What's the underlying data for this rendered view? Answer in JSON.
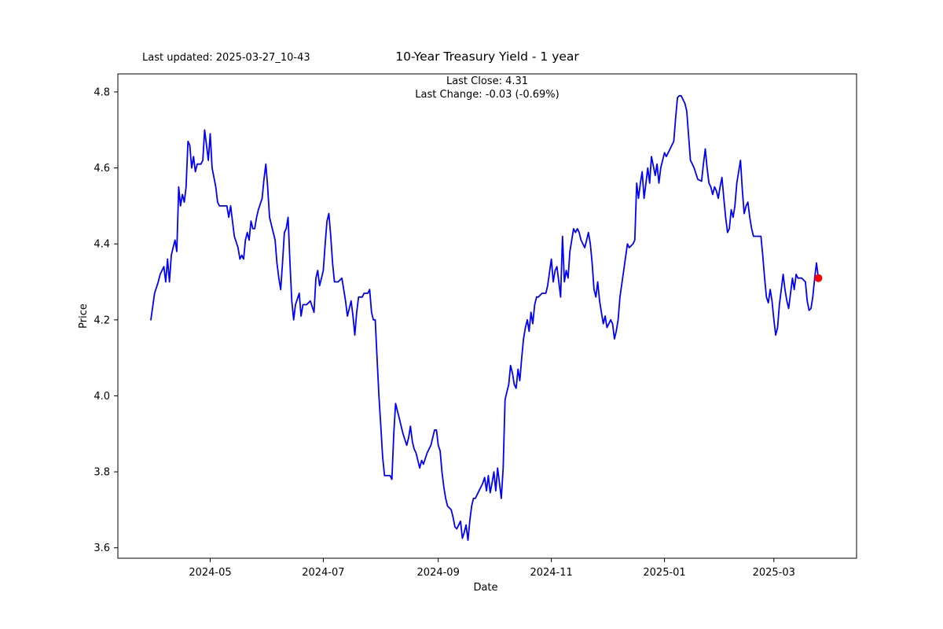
{
  "figure": {
    "last_updated": "Last updated: 2025-03-27_10-43",
    "title": "10-Year Treasury Yield - 1 year",
    "subtitle_line1": "Last Close: 4.31",
    "subtitle_line2": "Last Change: -0.03 (-0.69%)"
  },
  "chart_data": {
    "type": "line",
    "title": "10-Year Treasury Yield - 1 year",
    "xlabel": "Date",
    "ylabel": "Price",
    "last_close": 4.31,
    "last_change": -0.03,
    "last_change_pct": "-0.69%",
    "line_color": "#0000ff",
    "marker_color": "#ff0000",
    "grid": false,
    "legend": "none",
    "ylim": [
      3.5725,
      4.8475
    ],
    "y_ticks": [
      "3.6",
      "3.8",
      "4.0",
      "4.2",
      "4.4",
      "4.6",
      "4.8"
    ],
    "x_start_date": "2024-03-30",
    "x_ticks": [
      {
        "label": "2024-05",
        "day": 32
      },
      {
        "label": "2024-07",
        "day": 93
      },
      {
        "label": "2024-09",
        "day": 155
      },
      {
        "label": "2024-11",
        "day": 216
      },
      {
        "label": "2025-01",
        "day": 277
      },
      {
        "label": "2025-03",
        "day": 336
      }
    ],
    "series": [
      {
        "name": "10-Year Treasury Yield",
        "points_format": "[days_since_2024-03-30, yield_percent]",
        "points": [
          [
            0,
            4.2
          ],
          [
            2,
            4.27
          ],
          [
            4,
            4.3
          ],
          [
            5,
            4.32
          ],
          [
            7,
            4.34
          ],
          [
            8,
            4.3
          ],
          [
            9,
            4.36
          ],
          [
            10,
            4.3
          ],
          [
            11,
            4.37
          ],
          [
            12,
            4.39
          ],
          [
            13,
            4.41
          ],
          [
            14,
            4.38
          ],
          [
            15,
            4.55
          ],
          [
            16,
            4.5
          ],
          [
            17,
            4.53
          ],
          [
            18,
            4.51
          ],
          [
            19,
            4.55
          ],
          [
            20,
            4.67
          ],
          [
            21,
            4.66
          ],
          [
            22,
            4.6
          ],
          [
            23,
            4.63
          ],
          [
            24,
            4.59
          ],
          [
            25,
            4.61
          ],
          [
            27,
            4.61
          ],
          [
            28,
            4.62
          ],
          [
            29,
            4.7
          ],
          [
            30,
            4.66
          ],
          [
            31,
            4.62
          ],
          [
            32,
            4.69
          ],
          [
            33,
            4.6
          ],
          [
            35,
            4.55
          ],
          [
            36,
            4.51
          ],
          [
            37,
            4.5
          ],
          [
            39,
            4.5
          ],
          [
            41,
            4.5
          ],
          [
            42,
            4.47
          ],
          [
            43,
            4.5
          ],
          [
            44,
            4.46
          ],
          [
            45,
            4.42
          ],
          [
            47,
            4.39
          ],
          [
            48,
            4.36
          ],
          [
            49,
            4.37
          ],
          [
            50,
            4.36
          ],
          [
            51,
            4.41
          ],
          [
            52,
            4.43
          ],
          [
            53,
            4.41
          ],
          [
            54,
            4.46
          ],
          [
            55,
            4.44
          ],
          [
            56,
            4.44
          ],
          [
            57,
            4.47
          ],
          [
            58,
            4.49
          ],
          [
            60,
            4.52
          ],
          [
            61,
            4.57
          ],
          [
            62,
            4.61
          ],
          [
            63,
            4.55
          ],
          [
            64,
            4.47
          ],
          [
            67,
            4.41
          ],
          [
            68,
            4.35
          ],
          [
            69,
            4.31
          ],
          [
            70,
            4.28
          ],
          [
            71,
            4.35
          ],
          [
            72,
            4.43
          ],
          [
            73,
            4.44
          ],
          [
            74,
            4.47
          ],
          [
            75,
            4.35
          ],
          [
            76,
            4.25
          ],
          [
            77,
            4.2
          ],
          [
            78,
            4.24
          ],
          [
            80,
            4.27
          ],
          [
            81,
            4.21
          ],
          [
            82,
            4.24
          ],
          [
            84,
            4.24
          ],
          [
            86,
            4.25
          ],
          [
            88,
            4.22
          ],
          [
            89,
            4.31
          ],
          [
            90,
            4.33
          ],
          [
            91,
            4.29
          ],
          [
            92,
            4.31
          ],
          [
            93,
            4.33
          ],
          [
            94,
            4.4
          ],
          [
            95,
            4.46
          ],
          [
            96,
            4.48
          ],
          [
            97,
            4.42
          ],
          [
            98,
            4.35
          ],
          [
            99,
            4.3
          ],
          [
            101,
            4.3
          ],
          [
            103,
            4.31
          ],
          [
            104,
            4.28
          ],
          [
            105,
            4.25
          ],
          [
            106,
            4.21
          ],
          [
            107,
            4.23
          ],
          [
            108,
            4.25
          ],
          [
            109,
            4.21
          ],
          [
            110,
            4.16
          ],
          [
            111,
            4.22
          ],
          [
            112,
            4.26
          ],
          [
            114,
            4.26
          ],
          [
            115,
            4.27
          ],
          [
            117,
            4.27
          ],
          [
            118,
            4.28
          ],
          [
            119,
            4.22
          ],
          [
            120,
            4.2
          ],
          [
            121,
            4.2
          ],
          [
            122,
            4.1
          ],
          [
            123,
            4.0
          ],
          [
            124,
            3.92
          ],
          [
            125,
            3.84
          ],
          [
            126,
            3.79
          ],
          [
            127,
            3.79
          ],
          [
            129,
            3.79
          ],
          [
            130,
            3.78
          ],
          [
            131,
            3.9
          ],
          [
            132,
            3.98
          ],
          [
            133,
            3.96
          ],
          [
            134,
            3.94
          ],
          [
            135,
            3.92
          ],
          [
            136,
            3.9
          ],
          [
            137,
            3.885
          ],
          [
            138,
            3.87
          ],
          [
            139,
            3.89
          ],
          [
            140,
            3.92
          ],
          [
            141,
            3.88
          ],
          [
            142,
            3.86
          ],
          [
            143,
            3.85
          ],
          [
            145,
            3.81
          ],
          [
            146,
            3.83
          ],
          [
            147,
            3.82
          ],
          [
            149,
            3.85
          ],
          [
            151,
            3.87
          ],
          [
            153,
            3.91
          ],
          [
            154,
            3.91
          ],
          [
            155,
            3.87
          ],
          [
            156,
            3.855
          ],
          [
            157,
            3.8
          ],
          [
            158,
            3.76
          ],
          [
            159,
            3.73
          ],
          [
            160,
            3.71
          ],
          [
            162,
            3.7
          ],
          [
            163,
            3.68
          ],
          [
            164,
            3.655
          ],
          [
            165,
            3.65
          ],
          [
            166,
            3.66
          ],
          [
            167,
            3.67
          ],
          [
            168,
            3.625
          ],
          [
            169,
            3.64
          ],
          [
            170,
            3.66
          ],
          [
            171,
            3.62
          ],
          [
            172,
            3.67
          ],
          [
            173,
            3.71
          ],
          [
            174,
            3.73
          ],
          [
            175,
            3.73
          ],
          [
            177,
            3.75
          ],
          [
            178,
            3.76
          ],
          [
            179,
            3.77
          ],
          [
            180,
            3.785
          ],
          [
            181,
            3.75
          ],
          [
            182,
            3.79
          ],
          [
            183,
            3.745
          ],
          [
            184,
            3.77
          ],
          [
            185,
            3.8
          ],
          [
            186,
            3.75
          ],
          [
            187,
            3.81
          ],
          [
            188,
            3.77
          ],
          [
            189,
            3.73
          ],
          [
            190,
            3.81
          ],
          [
            191,
            3.99
          ],
          [
            192,
            4.01
          ],
          [
            193,
            4.03
          ],
          [
            194,
            4.08
          ],
          [
            195,
            4.06
          ],
          [
            196,
            4.03
          ],
          [
            197,
            4.02
          ],
          [
            198,
            4.07
          ],
          [
            199,
            4.04
          ],
          [
            200,
            4.1
          ],
          [
            201,
            4.15
          ],
          [
            202,
            4.18
          ],
          [
            203,
            4.2
          ],
          [
            204,
            4.17
          ],
          [
            205,
            4.22
          ],
          [
            206,
            4.19
          ],
          [
            207,
            4.24
          ],
          [
            208,
            4.26
          ],
          [
            209,
            4.26
          ],
          [
            211,
            4.27
          ],
          [
            213,
            4.27
          ],
          [
            214,
            4.29
          ],
          [
            216,
            4.36
          ],
          [
            217,
            4.3
          ],
          [
            218,
            4.33
          ],
          [
            219,
            4.34
          ],
          [
            220,
            4.3
          ],
          [
            221,
            4.26
          ],
          [
            222,
            4.42
          ],
          [
            223,
            4.3
          ],
          [
            224,
            4.33
          ],
          [
            225,
            4.31
          ],
          [
            226,
            4.38
          ],
          [
            228,
            4.44
          ],
          [
            229,
            4.43
          ],
          [
            230,
            4.44
          ],
          [
            231,
            4.43
          ],
          [
            232,
            4.41
          ],
          [
            234,
            4.39
          ],
          [
            235,
            4.41
          ],
          [
            236,
            4.43
          ],
          [
            237,
            4.4
          ],
          [
            238,
            4.35
          ],
          [
            239,
            4.28
          ],
          [
            240,
            4.26
          ],
          [
            241,
            4.3
          ],
          [
            242,
            4.25
          ],
          [
            243,
            4.22
          ],
          [
            244,
            4.19
          ],
          [
            245,
            4.21
          ],
          [
            246,
            4.18
          ],
          [
            247,
            4.19
          ],
          [
            248,
            4.2
          ],
          [
            249,
            4.19
          ],
          [
            250,
            4.15
          ],
          [
            251,
            4.17
          ],
          [
            252,
            4.2
          ],
          [
            253,
            4.26
          ],
          [
            255,
            4.33
          ],
          [
            257,
            4.4
          ],
          [
            258,
            4.39
          ],
          [
            260,
            4.4
          ],
          [
            261,
            4.41
          ],
          [
            262,
            4.56
          ],
          [
            263,
            4.52
          ],
          [
            264,
            4.56
          ],
          [
            265,
            4.59
          ],
          [
            266,
            4.52
          ],
          [
            267,
            4.56
          ],
          [
            268,
            4.6
          ],
          [
            269,
            4.56
          ],
          [
            270,
            4.63
          ],
          [
            272,
            4.58
          ],
          [
            273,
            4.61
          ],
          [
            274,
            4.56
          ],
          [
            275,
            4.6
          ],
          [
            277,
            4.64
          ],
          [
            278,
            4.63
          ],
          [
            279,
            4.64
          ],
          [
            281,
            4.66
          ],
          [
            282,
            4.67
          ],
          [
            283,
            4.73
          ],
          [
            284,
            4.785
          ],
          [
            285,
            4.79
          ],
          [
            286,
            4.79
          ],
          [
            288,
            4.77
          ],
          [
            289,
            4.75
          ],
          [
            291,
            4.62
          ],
          [
            292,
            4.61
          ],
          [
            293,
            4.6
          ],
          [
            295,
            4.57
          ],
          [
            297,
            4.565
          ],
          [
            298,
            4.61
          ],
          [
            299,
            4.65
          ],
          [
            300,
            4.6
          ],
          [
            301,
            4.56
          ],
          [
            302,
            4.55
          ],
          [
            303,
            4.53
          ],
          [
            304,
            4.55
          ],
          [
            305,
            4.54
          ],
          [
            306,
            4.52
          ],
          [
            307,
            4.55
          ],
          [
            308,
            4.575
          ],
          [
            309,
            4.52
          ],
          [
            310,
            4.47
          ],
          [
            311,
            4.43
          ],
          [
            312,
            4.44
          ],
          [
            313,
            4.49
          ],
          [
            314,
            4.47
          ],
          [
            315,
            4.5
          ],
          [
            316,
            4.56
          ],
          [
            318,
            4.62
          ],
          [
            319,
            4.54
          ],
          [
            320,
            4.48
          ],
          [
            321,
            4.5
          ],
          [
            322,
            4.51
          ],
          [
            323,
            4.47
          ],
          [
            324,
            4.44
          ],
          [
            325,
            4.42
          ],
          [
            327,
            4.42
          ],
          [
            329,
            4.42
          ],
          [
            330,
            4.37
          ],
          [
            331,
            4.31
          ],
          [
            332,
            4.26
          ],
          [
            333,
            4.245
          ],
          [
            334,
            4.28
          ],
          [
            335,
            4.25
          ],
          [
            336,
            4.2
          ],
          [
            337,
            4.16
          ],
          [
            338,
            4.18
          ],
          [
            339,
            4.24
          ],
          [
            340,
            4.28
          ],
          [
            341,
            4.32
          ],
          [
            342,
            4.28
          ],
          [
            343,
            4.25
          ],
          [
            344,
            4.23
          ],
          [
            345,
            4.27
          ],
          [
            346,
            4.31
          ],
          [
            347,
            4.28
          ],
          [
            348,
            4.32
          ],
          [
            349,
            4.31
          ],
          [
            351,
            4.31
          ],
          [
            353,
            4.3
          ],
          [
            354,
            4.25
          ],
          [
            355,
            4.225
          ],
          [
            356,
            4.23
          ],
          [
            357,
            4.26
          ],
          [
            358,
            4.31
          ],
          [
            359,
            4.35
          ],
          [
            360,
            4.31
          ]
        ]
      }
    ]
  }
}
